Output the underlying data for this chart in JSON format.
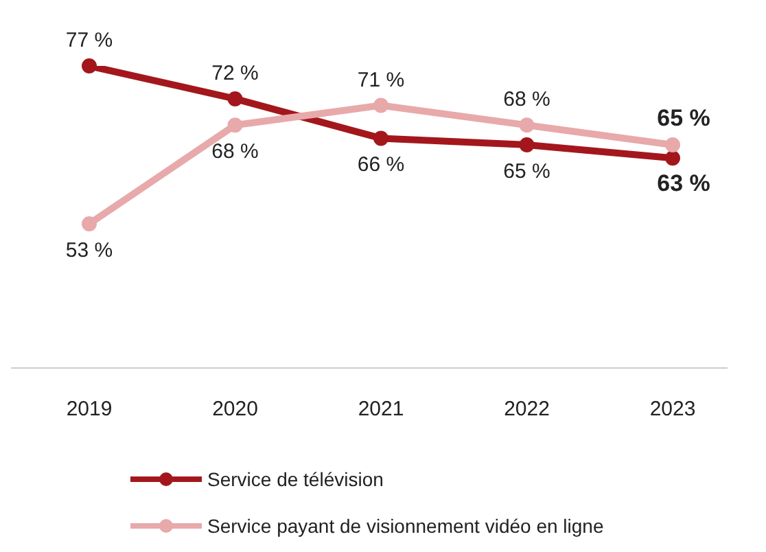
{
  "chart_data": {
    "type": "line",
    "categories": [
      "2019",
      "2020",
      "2021",
      "2022",
      "2023"
    ],
    "series": [
      {
        "name": "Service de télévision",
        "color": "#a3171c",
        "values": [
          77,
          72,
          66,
          65,
          63
        ],
        "value_labels": [
          "77 %",
          "72 %",
          "66 %",
          "65 %",
          "63 %"
        ]
      },
      {
        "name": "Service payant de visionnement vidéo en ligne",
        "color": "#e8a9ab",
        "values": [
          53,
          68,
          71,
          68,
          65
        ],
        "value_labels": [
          "53 %",
          "68 %",
          "71 %",
          "68 %",
          "65 %"
        ]
      }
    ],
    "tick_labels": "x",
    "grid": false,
    "legend": "bottom",
    "marker": "circle",
    "line_style": "solid"
  }
}
